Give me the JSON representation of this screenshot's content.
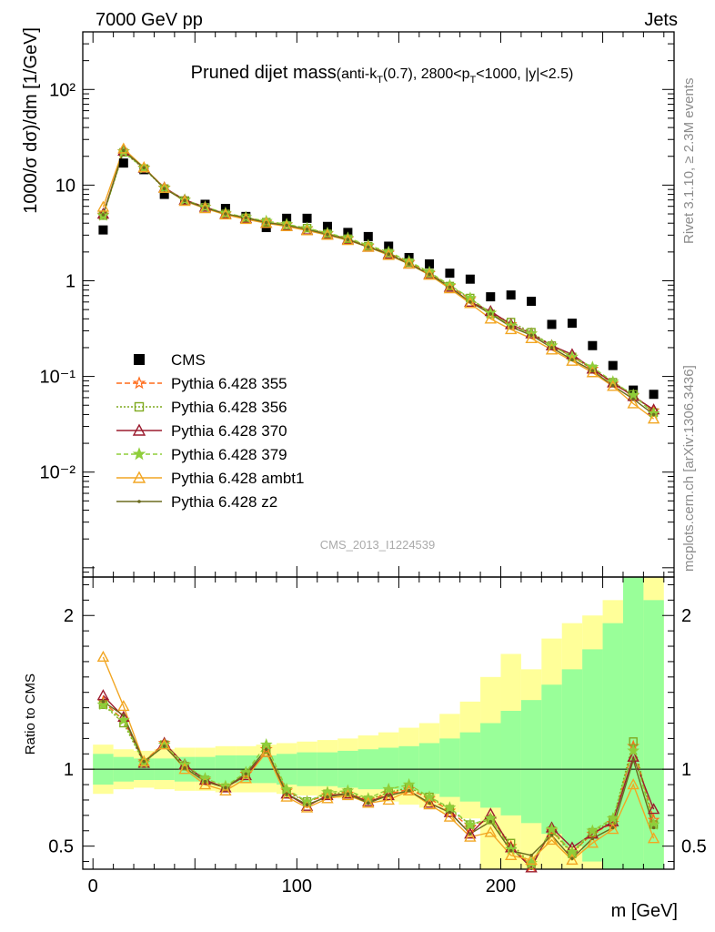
{
  "header": {
    "left": "7000 GeV pp",
    "right": "Jets",
    "title_main": "Pruned dijet mass",
    "title_sub": "(anti-k",
    "title_sub_T": "T",
    "title_sub_rest": "(0.7), 2800<p",
    "title_sub_T2": "T",
    "title_sub_end": "<1000, |y|<2.5)"
  },
  "side_labels": {
    "rivet": "Rivet 3.1.10, ≥ 2.3M events",
    "mcplots": "mcplots.cern.ch [arXiv:1306.3436]"
  },
  "watermark": "CMS_2013_I1224539",
  "colors": {
    "cms": "#000000",
    "p355": "#ff6b1a",
    "p356": "#7faa1f",
    "p370": "#9b1b2e",
    "p379": "#8fce3a",
    "ambt1": "#f2a623",
    "z2": "#6b6b1e",
    "band_inner": "#99ff99",
    "band_outer": "#ffff99"
  },
  "chart_data": [
    {
      "type": "scatter",
      "panel": "main",
      "ylabel": "1000/σ dσ)/dm [1/GeV]",
      "ylog": true,
      "ylim": [
        0.0008,
        400
      ],
      "xlim": [
        -5,
        285
      ],
      "ytick_labels": [
        "10⁻²",
        "10⁻¹",
        "1",
        "10",
        "10²"
      ],
      "ytick_values": [
        0.01,
        0.1,
        1,
        10,
        100
      ],
      "x": [
        5,
        15,
        25,
        35,
        45,
        55,
        65,
        75,
        85,
        95,
        105,
        115,
        125,
        135,
        145,
        155,
        165,
        175,
        185,
        195,
        205,
        215,
        225,
        235,
        245,
        255,
        265,
        275
      ],
      "legend_position": "left-lower",
      "series": [
        {
          "name": "CMS",
          "key": "cms",
          "marker": "square",
          "values": [
            3.4,
            17,
            14.5,
            8.0,
            6.8,
            6.3,
            5.7,
            4.7,
            3.6,
            4.5,
            4.5,
            3.7,
            3.2,
            2.9,
            2.3,
            1.75,
            1.5,
            1.2,
            1.04,
            0.68,
            0.71,
            0.61,
            0.35,
            0.36,
            0.21,
            0.13,
            0.072,
            0.065
          ]
        },
        {
          "name": "Pythia 6.428 355",
          "key": "p355",
          "marker": "star-open",
          "dash": "6,3",
          "values": [
            4.9,
            22.5,
            15.2,
            9.4,
            7.0,
            5.9,
            5.0,
            4.6,
            4.1,
            3.85,
            3.5,
            3.1,
            2.75,
            2.3,
            1.95,
            1.55,
            1.2,
            0.88,
            0.64,
            0.46,
            0.35,
            0.28,
            0.21,
            0.16,
            0.12,
            0.084,
            0.063,
            0.044
          ]
        },
        {
          "name": "Pythia 6.428 356",
          "key": "p356",
          "marker": "square-open",
          "dash": "2,2",
          "values": [
            4.8,
            22.0,
            14.9,
            9.2,
            6.9,
            5.85,
            5.0,
            4.55,
            4.1,
            3.8,
            3.55,
            3.1,
            2.75,
            2.3,
            1.95,
            1.55,
            1.2,
            0.88,
            0.66,
            0.45,
            0.37,
            0.29,
            0.21,
            0.16,
            0.12,
            0.087,
            0.065,
            0.042
          ]
        },
        {
          "name": "Pythia 6.428 370",
          "key": "p370",
          "marker": "triangle-open",
          "dash": "",
          "values": [
            5.0,
            22.8,
            15.1,
            9.4,
            7.0,
            5.9,
            5.0,
            4.5,
            4.0,
            3.75,
            3.4,
            3.05,
            2.7,
            2.25,
            1.9,
            1.5,
            1.17,
            0.86,
            0.6,
            0.48,
            0.35,
            0.28,
            0.21,
            0.17,
            0.12,
            0.086,
            0.062,
            0.045
          ]
        },
        {
          "name": "Pythia 6.428 379",
          "key": "p379",
          "marker": "star",
          "dash": "5,3",
          "values": [
            4.8,
            22.4,
            15.0,
            9.3,
            7.0,
            5.9,
            5.1,
            4.6,
            4.2,
            3.9,
            3.55,
            3.15,
            2.8,
            2.35,
            2.0,
            1.6,
            1.23,
            0.9,
            0.66,
            0.46,
            0.34,
            0.28,
            0.21,
            0.16,
            0.125,
            0.088,
            0.064,
            0.041
          ]
        },
        {
          "name": "Pythia 6.428 ambt1",
          "key": "ambt1",
          "marker": "triangle-open",
          "dash": "",
          "values": [
            5.9,
            24.0,
            15.3,
            9.3,
            6.8,
            5.7,
            4.9,
            4.4,
            4.0,
            3.7,
            3.35,
            3.0,
            2.65,
            2.25,
            1.85,
            1.5,
            1.15,
            0.83,
            0.58,
            0.4,
            0.31,
            0.25,
            0.19,
            0.145,
            0.11,
            0.079,
            0.052,
            0.036
          ]
        },
        {
          "name": "Pythia 6.428 z2",
          "key": "z2",
          "marker": "dot",
          "dash": "",
          "values": [
            4.9,
            23.0,
            15.2,
            9.2,
            6.9,
            5.8,
            5.0,
            4.55,
            4.05,
            3.8,
            3.45,
            3.05,
            2.7,
            2.25,
            1.9,
            1.5,
            1.17,
            0.86,
            0.6,
            0.45,
            0.33,
            0.27,
            0.2,
            0.15,
            0.115,
            0.08,
            0.058,
            0.04
          ]
        }
      ]
    },
    {
      "type": "line",
      "panel": "ratio",
      "xlabel": "m [GeV]",
      "ylabel": "Ratio to CMS",
      "xlim": [
        -5,
        285
      ],
      "ylim": [
        0.35,
        2.25
      ],
      "xtick_values": [
        0,
        100,
        200
      ],
      "xtick_labels": [
        "0",
        "100",
        "200"
      ],
      "ytick_values": [
        0.5,
        1,
        2
      ],
      "ytick_labels": [
        "0.5",
        "1",
        "2"
      ],
      "x": [
        5,
        15,
        25,
        35,
        45,
        55,
        65,
        75,
        85,
        95,
        105,
        115,
        125,
        135,
        145,
        155,
        165,
        175,
        185,
        195,
        205,
        215,
        225,
        235,
        245,
        255,
        265,
        275
      ],
      "band_inner": [
        [
          0.9,
          1.1
        ],
        [
          0.92,
          1.08
        ],
        [
          0.93,
          1.07
        ],
        [
          0.93,
          1.07
        ],
        [
          0.92,
          1.08
        ],
        [
          0.92,
          1.08
        ],
        [
          0.91,
          1.09
        ],
        [
          0.91,
          1.09
        ],
        [
          0.91,
          1.09
        ],
        [
          0.9,
          1.1
        ],
        [
          0.89,
          1.11
        ],
        [
          0.89,
          1.11
        ],
        [
          0.88,
          1.12
        ],
        [
          0.87,
          1.13
        ],
        [
          0.87,
          1.14
        ],
        [
          0.86,
          1.15
        ],
        [
          0.84,
          1.17
        ],
        [
          0.82,
          1.2
        ],
        [
          0.79,
          1.24
        ],
        [
          0.75,
          1.3
        ],
        [
          0.7,
          1.38
        ],
        [
          0.65,
          1.45
        ],
        [
          0.58,
          1.55
        ],
        [
          0.5,
          1.65
        ],
        [
          0.4,
          1.78
        ],
        [
          0.35,
          1.95
        ],
        [
          0.35,
          2.25
        ],
        [
          0.35,
          2.1
        ]
      ],
      "band_outer": [
        [
          0.84,
          1.16
        ],
        [
          0.87,
          1.13
        ],
        [
          0.88,
          1.12
        ],
        [
          0.87,
          1.13
        ],
        [
          0.86,
          1.14
        ],
        [
          0.86,
          1.14
        ],
        [
          0.85,
          1.15
        ],
        [
          0.85,
          1.15
        ],
        [
          0.85,
          1.16
        ],
        [
          0.84,
          1.17
        ],
        [
          0.83,
          1.18
        ],
        [
          0.82,
          1.19
        ],
        [
          0.81,
          1.2
        ],
        [
          0.8,
          1.22
        ],
        [
          0.79,
          1.24
        ],
        [
          0.77,
          1.27
        ],
        [
          0.75,
          1.3
        ],
        [
          0.72,
          1.36
        ],
        [
          0.68,
          1.44
        ],
        [
          0.35,
          1.6
        ],
        [
          0.35,
          1.75
        ],
        [
          0.35,
          1.65
        ],
        [
          0.35,
          1.85
        ],
        [
          0.35,
          1.95
        ],
        [
          0.35,
          2.0
        ],
        [
          0.35,
          2.1
        ],
        [
          0.35,
          2.25
        ],
        [
          0.35,
          2.25
        ]
      ],
      "series": [
        {
          "name": "Pythia 6.428 355",
          "key": "p355",
          "values": [
            1.44,
            1.32,
            1.05,
            1.17,
            1.03,
            0.93,
            0.88,
            0.97,
            1.13,
            0.86,
            0.79,
            0.83,
            0.84,
            0.8,
            0.84,
            0.87,
            0.81,
            0.73,
            0.62,
            0.68,
            0.5,
            0.37,
            0.6,
            0.46,
            0.58,
            0.65,
            1.15,
            0.67
          ]
        },
        {
          "name": "Pythia 6.428 356",
          "key": "p356",
          "values": [
            1.42,
            1.3,
            1.04,
            1.16,
            1.02,
            0.93,
            0.88,
            0.97,
            1.13,
            0.85,
            0.79,
            0.84,
            0.85,
            0.8,
            0.85,
            0.88,
            0.82,
            0.74,
            0.64,
            0.67,
            0.52,
            0.38,
            0.6,
            0.45,
            0.59,
            0.67,
            1.18,
            0.64
          ]
        },
        {
          "name": "Pythia 6.428 370",
          "key": "p370",
          "values": [
            1.48,
            1.34,
            1.04,
            1.17,
            1.03,
            0.93,
            0.88,
            0.96,
            1.11,
            0.84,
            0.76,
            0.83,
            0.84,
            0.79,
            0.83,
            0.86,
            0.78,
            0.72,
            0.58,
            0.71,
            0.49,
            0.36,
            0.62,
            0.49,
            0.58,
            0.66,
            1.08,
            0.74
          ]
        },
        {
          "name": "Pythia 6.428 379",
          "key": "p379",
          "values": [
            1.42,
            1.32,
            1.04,
            1.16,
            1.03,
            0.94,
            0.89,
            0.98,
            1.16,
            0.87,
            0.79,
            0.85,
            0.86,
            0.81,
            0.87,
            0.9,
            0.82,
            0.75,
            0.64,
            0.68,
            0.48,
            0.39,
            0.61,
            0.46,
            0.6,
            0.68,
            1.12,
            0.64
          ]
        },
        {
          "name": "Pythia 6.428 ambt1",
          "key": "ambt1",
          "values": [
            1.73,
            1.41,
            1.05,
            1.16,
            1.0,
            0.9,
            0.86,
            0.94,
            1.11,
            0.82,
            0.75,
            0.81,
            0.83,
            0.78,
            0.8,
            0.86,
            0.77,
            0.69,
            0.56,
            0.59,
            0.44,
            0.41,
            0.54,
            0.41,
            0.52,
            0.61,
            0.9,
            0.55
          ]
        },
        {
          "name": "Pythia 6.428 z2",
          "key": "z2",
          "values": [
            1.44,
            1.35,
            1.05,
            1.15,
            1.01,
            0.92,
            0.88,
            0.97,
            1.13,
            0.84,
            0.77,
            0.82,
            0.84,
            0.78,
            0.83,
            0.86,
            0.78,
            0.72,
            0.58,
            0.66,
            0.47,
            0.44,
            0.57,
            0.42,
            0.55,
            0.62,
            1.06,
            0.62
          ]
        }
      ]
    }
  ]
}
